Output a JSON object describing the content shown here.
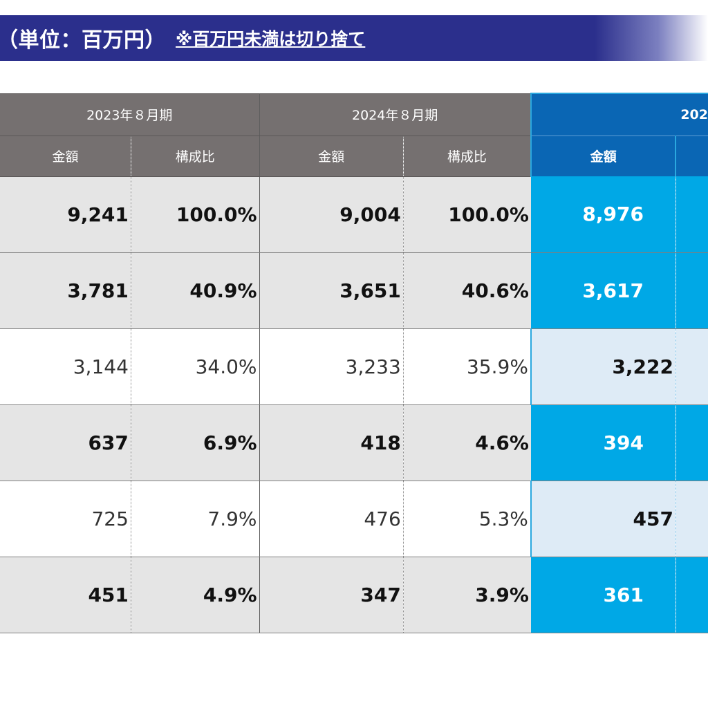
{
  "title": {
    "main": "（単位：百万円）",
    "note": "※百万円未満は切り捨て"
  },
  "table": {
    "periods": [
      "2023年８月期",
      "2024年８月期",
      "202"
    ],
    "subheaders": [
      "金額",
      "構成比",
      "金額",
      "構成比",
      "金額"
    ],
    "rows": [
      {
        "cells": [
          "9,241",
          "100.0%",
          "9,004",
          "100.0%",
          "8,976"
        ],
        "style": "highlight"
      },
      {
        "cells": [
          "3,781",
          "40.9%",
          "3,651",
          "40.6%",
          "3,617"
        ],
        "style": "highlight"
      },
      {
        "cells": [
          "3,144",
          "34.0%",
          "3,233",
          "35.9%",
          "3,222"
        ],
        "style": "plain"
      },
      {
        "cells": [
          "637",
          "6.9%",
          "418",
          "4.6%",
          "394"
        ],
        "style": "highlight"
      },
      {
        "cells": [
          "725",
          "7.9%",
          "476",
          "5.3%",
          "457"
        ],
        "style": "plain"
      },
      {
        "cells": [
          "451",
          "4.9%",
          "347",
          "3.9%",
          "361"
        ],
        "style": "highlight"
      }
    ]
  },
  "colors": {
    "title_bar": "#2b2f8c",
    "header_gray": "#757070",
    "header_blue": "#0a66b4",
    "highlight_blue": "#00a8e6",
    "row_gray": "#e5e5e5",
    "row_lightblue": "#deebf6"
  }
}
